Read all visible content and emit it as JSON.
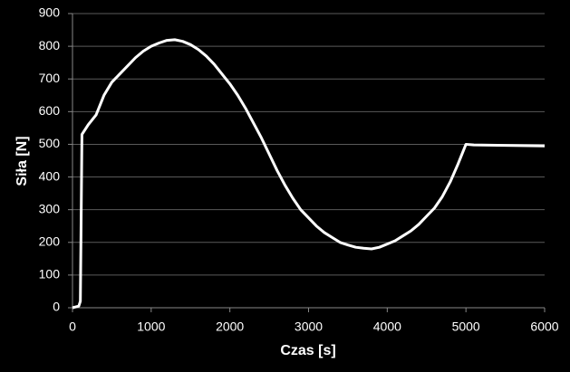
{
  "chart_data": {
    "type": "line",
    "x_label": "Czas [s]",
    "y_label": "Siła [N]",
    "x": [
      0,
      80,
      100,
      120,
      200,
      300,
      400,
      500,
      600,
      700,
      800,
      900,
      1000,
      1100,
      1200,
      1300,
      1400,
      1500,
      1600,
      1700,
      1800,
      1900,
      2000,
      2100,
      2200,
      2300,
      2400,
      2500,
      2600,
      2700,
      2800,
      2900,
      3000,
      3100,
      3200,
      3300,
      3400,
      3500,
      3600,
      3700,
      3800,
      3900,
      4000,
      4100,
      4200,
      4300,
      4400,
      4500,
      4600,
      4700,
      4800,
      4900,
      5000,
      5100,
      6000
    ],
    "values": [
      0,
      5,
      20,
      530,
      560,
      590,
      650,
      690,
      715,
      740,
      765,
      785,
      800,
      810,
      818,
      820,
      815,
      805,
      790,
      770,
      745,
      715,
      685,
      650,
      610,
      565,
      520,
      470,
      420,
      375,
      335,
      300,
      275,
      250,
      230,
      215,
      200,
      192,
      185,
      182,
      180,
      185,
      195,
      205,
      220,
      235,
      255,
      280,
      305,
      340,
      385,
      440,
      500,
      498,
      495
    ],
    "color": "#ffffff",
    "xlim": [
      0,
      6000
    ],
    "xticks": [
      0,
      1000,
      2000,
      3000,
      4000,
      5000,
      6000
    ],
    "ylim": [
      0,
      900
    ],
    "yticks": [
      0,
      100,
      200,
      300,
      400,
      500,
      600,
      700,
      800,
      900
    ],
    "grid": true
  }
}
